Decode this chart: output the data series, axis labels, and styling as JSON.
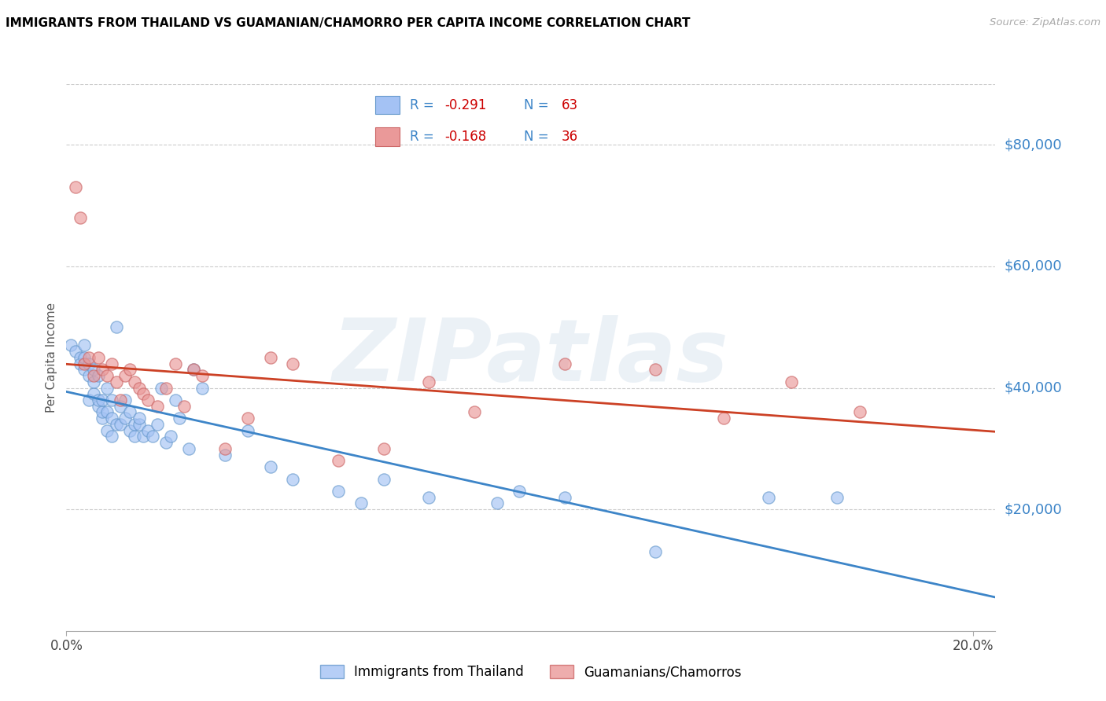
{
  "title": "IMMIGRANTS FROM THAILAND VS GUAMANIAN/CHAMORRO PER CAPITA INCOME CORRELATION CHART",
  "source": "Source: ZipAtlas.com",
  "ylabel": "Per Capita Income",
  "xlim": [
    0.0,
    0.205
  ],
  "ylim": [
    0,
    90000
  ],
  "yticks": [
    20000,
    40000,
    60000,
    80000
  ],
  "ytick_labels": [
    "$20,000",
    "$40,000",
    "$60,000",
    "$80,000"
  ],
  "color_blue": "#a4c2f4",
  "color_pink": "#ea9999",
  "color_line_blue": "#3d85c8",
  "color_line_pink": "#cc4125",
  "color_title": "#000000",
  "color_source": "#aaaaaa",
  "color_ytick": "#3d85c8",
  "color_legend_text": "#3d85c8",
  "color_legend_red": "#cc0000",
  "background_color": "#ffffff",
  "grid_color": "#cccccc",
  "watermark": "ZIPatlas",
  "r1": "-0.291",
  "n1": "63",
  "r2": "-0.168",
  "n2": "36",
  "legend_label1": "Immigrants from Thailand",
  "legend_label2": "Guamanians/Chamorros",
  "thailand_x": [
    0.001,
    0.002,
    0.003,
    0.003,
    0.004,
    0.004,
    0.004,
    0.005,
    0.005,
    0.005,
    0.006,
    0.006,
    0.006,
    0.007,
    0.007,
    0.007,
    0.008,
    0.008,
    0.008,
    0.009,
    0.009,
    0.009,
    0.01,
    0.01,
    0.01,
    0.011,
    0.011,
    0.012,
    0.012,
    0.013,
    0.013,
    0.014,
    0.014,
    0.015,
    0.015,
    0.016,
    0.016,
    0.017,
    0.018,
    0.019,
    0.02,
    0.021,
    0.022,
    0.023,
    0.024,
    0.025,
    0.027,
    0.028,
    0.03,
    0.035,
    0.04,
    0.045,
    0.05,
    0.06,
    0.065,
    0.07,
    0.08,
    0.095,
    0.1,
    0.11,
    0.13,
    0.155,
    0.17
  ],
  "thailand_y": [
    47000,
    46000,
    45000,
    44000,
    43000,
    45000,
    47000,
    38000,
    42000,
    44000,
    39000,
    41000,
    43000,
    37000,
    38000,
    42000,
    35000,
    36000,
    38000,
    33000,
    36000,
    40000,
    32000,
    35000,
    38000,
    34000,
    50000,
    34000,
    37000,
    35000,
    38000,
    33000,
    36000,
    32000,
    34000,
    34000,
    35000,
    32000,
    33000,
    32000,
    34000,
    40000,
    31000,
    32000,
    38000,
    35000,
    30000,
    43000,
    40000,
    29000,
    33000,
    27000,
    25000,
    23000,
    21000,
    25000,
    22000,
    21000,
    23000,
    22000,
    13000,
    22000,
    22000
  ],
  "guam_x": [
    0.002,
    0.003,
    0.004,
    0.005,
    0.006,
    0.007,
    0.008,
    0.009,
    0.01,
    0.011,
    0.012,
    0.013,
    0.014,
    0.015,
    0.016,
    0.017,
    0.018,
    0.02,
    0.022,
    0.024,
    0.026,
    0.028,
    0.03,
    0.035,
    0.04,
    0.045,
    0.05,
    0.06,
    0.07,
    0.08,
    0.09,
    0.11,
    0.13,
    0.145,
    0.16,
    0.175
  ],
  "guam_y": [
    73000,
    68000,
    44000,
    45000,
    42000,
    45000,
    43000,
    42000,
    44000,
    41000,
    38000,
    42000,
    43000,
    41000,
    40000,
    39000,
    38000,
    37000,
    40000,
    44000,
    37000,
    43000,
    42000,
    30000,
    35000,
    45000,
    44000,
    28000,
    30000,
    41000,
    36000,
    44000,
    43000,
    35000,
    41000,
    36000
  ]
}
